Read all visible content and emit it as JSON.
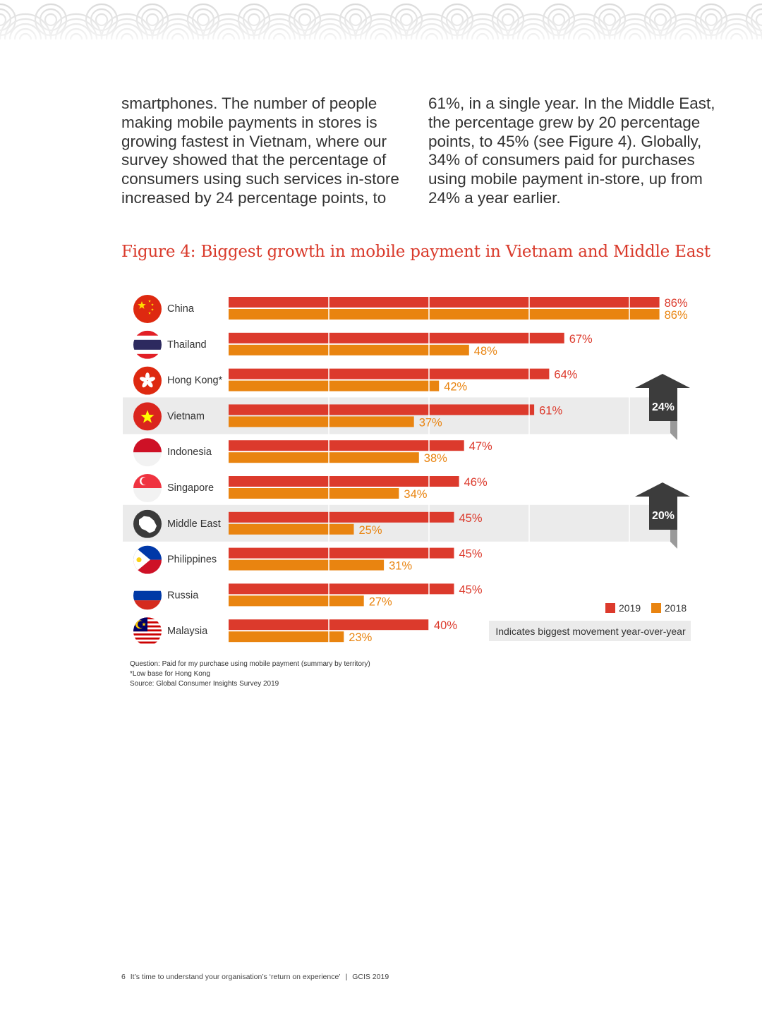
{
  "body_text": {
    "left_lines": [
      "smartphones. The number of people",
      "making mobile payments in stores is",
      "growing fastest in Vietnam, where our",
      "survey showed that the percentage of",
      "consumers using such services in-store",
      "increased by 24 percentage points, to"
    ],
    "right_lines": [
      "61%, in a single year. In the Middle East,",
      "the percentage grew by 20 percentage",
      "points, to 45% (see Figure 4). Globally,",
      "34% of consumers paid for purchases",
      "using mobile payment in-store, up from",
      "24% a year earlier."
    ]
  },
  "chart_data": {
    "type": "bar",
    "orientation": "horizontal",
    "title": "Figure 4: Biggest growth in mobile payment in Vietnam and Middle East",
    "categories": [
      "China",
      "Thailand",
      "Hong Kong*",
      "Vietnam",
      "Indonesia",
      "Singapore",
      "Middle East",
      "Philippines",
      "Russia",
      "Malaysia"
    ],
    "series": [
      {
        "name": "2019",
        "color": "#dc3a2c",
        "values": [
          86,
          67,
          64,
          61,
          47,
          46,
          45,
          45,
          45,
          40
        ]
      },
      {
        "name": "2018",
        "color": "#e98410",
        "values": [
          86,
          48,
          42,
          37,
          38,
          34,
          25,
          31,
          27,
          23
        ]
      }
    ],
    "value_labels_2019": [
      "86%",
      "67%",
      "64%",
      "61%",
      "47%",
      "46%",
      "45%",
      "45%",
      "45%",
      "40%"
    ],
    "value_labels_2018": [
      "86%",
      "48%",
      "42%",
      "37%",
      "38%",
      "34%",
      "25%",
      "31%",
      "27%",
      "23%"
    ],
    "xlim": [
      0,
      100
    ],
    "highlights": [
      {
        "category": "Vietnam",
        "label": "24%"
      },
      {
        "category": "Middle East",
        "label": "20%"
      }
    ],
    "legend": {
      "labels": [
        "2019",
        "2018"
      ],
      "position": "bottom-right"
    },
    "highlight_note": "Indicates biggest movement year-over-year"
  },
  "notes": {
    "question": "Question: Paid for my purchase using mobile payment (summary by territory)",
    "footnote": "*Low base for Hong Kong",
    "source": "Source: Global Consumer Insights Survey 2019"
  },
  "footer": {
    "page_number": "6",
    "title": "It’s time to understand your organisation’s ‘return on experience’",
    "separator": "|",
    "report": "GCIS 2019"
  },
  "colors": {
    "accent": "#d93a2b",
    "bar_2019": "#dc3a2c",
    "bar_2018": "#e98410",
    "highlight_band": "#ebebeb",
    "arrow": "#3c3c3c"
  }
}
